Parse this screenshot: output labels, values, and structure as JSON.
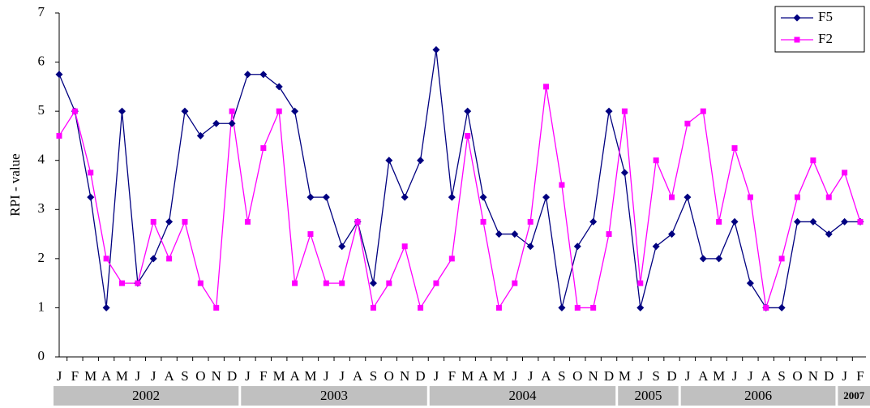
{
  "chart_data": {
    "type": "line",
    "y_label": "RPI - value",
    "categories": [
      "J",
      "F",
      "M",
      "A",
      "M",
      "J",
      "J",
      "A",
      "S",
      "O",
      "N",
      "D",
      "J",
      "F",
      "M",
      "A",
      "M",
      "J",
      "J",
      "A",
      "S",
      "O",
      "N",
      "D",
      "J",
      "F",
      "M",
      "A",
      "M",
      "J",
      "J",
      "A",
      "S",
      "O",
      "N",
      "D",
      "M",
      "J",
      "S",
      "D",
      "J",
      "A",
      "M",
      "J",
      "J",
      "A",
      "S",
      "O",
      "N",
      "D",
      "J",
      "F"
    ],
    "year_groups": [
      "2002",
      "2003",
      "2004",
      "2005",
      "2006",
      "2007"
    ],
    "series": [
      {
        "name": "F5",
        "color": "#000080",
        "marker": "diamond",
        "values": [
          5.75,
          5,
          3.25,
          1,
          5,
          1.5,
          2,
          2.75,
          5,
          4.5,
          4.75,
          4.75,
          5.75,
          5.75,
          5.5,
          5,
          3.25,
          3.25,
          2.25,
          2.75,
          1.5,
          4,
          3.25,
          4,
          6.25,
          3.25,
          5,
          3.25,
          2.5,
          2.5,
          2.25,
          3.25,
          1,
          2.25,
          2.75,
          5,
          3.75,
          1,
          2.25,
          2.5,
          3.25,
          2,
          2,
          2.75,
          1.5,
          1,
          1,
          2.75,
          2.75,
          2.5,
          2.75,
          2.75
        ]
      },
      {
        "name": "F2",
        "color": "#ff00ff",
        "marker": "square",
        "values": [
          4.5,
          5,
          3.75,
          2,
          1.5,
          1.5,
          2.75,
          2,
          2.75,
          1.5,
          1,
          5,
          2.75,
          4.25,
          5,
          1.5,
          2.5,
          1.5,
          1.5,
          2.75,
          1,
          1.5,
          2.25,
          1,
          1.5,
          2,
          4.5,
          2.75,
          1,
          1.5,
          2.75,
          5.5,
          3.5,
          1,
          1,
          2.5,
          5,
          1.5,
          4,
          3.25,
          4.75,
          5,
          2.75,
          4.25,
          3.25,
          1,
          2,
          3.25,
          4,
          3.25,
          3.75,
          2.75
        ]
      }
    ],
    "ylim": [
      0,
      7
    ],
    "yticks": [
      0,
      1,
      2,
      3,
      4,
      5,
      6,
      7
    ],
    "legend": "top-right"
  }
}
